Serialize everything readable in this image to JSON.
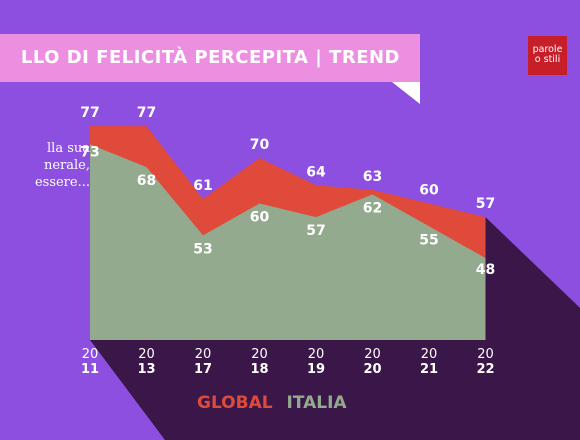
{
  "header": {
    "title": "LLO DI FELICITÀ PERCEPITA | TREND",
    "question_lines": [
      "lla sua",
      "nerale,",
      "essere..."
    ]
  },
  "logo": {
    "line1": "parole",
    "line2": "o stili"
  },
  "colors": {
    "background": "#8c4fdf",
    "banner": "#ec8fe1",
    "global": "#e04a3a",
    "italia": "#94aa8e",
    "shadow": "#3a1748",
    "logo": "#c61f2a"
  },
  "chart_data": {
    "type": "area",
    "categories": [
      [
        "20",
        "11"
      ],
      [
        "20",
        "13"
      ],
      [
        "20",
        "17"
      ],
      [
        "20",
        "18"
      ],
      [
        "20",
        "19"
      ],
      [
        "20",
        "20"
      ],
      [
        "20",
        "21"
      ],
      [
        "20",
        "22"
      ]
    ],
    "series": [
      {
        "name": "GLOBAL",
        "values": [
          77,
          77,
          61,
          70,
          64,
          63,
          60,
          57
        ]
      },
      {
        "name": "ITALIA",
        "values": [
          73,
          68,
          53,
          60,
          57,
          62,
          55,
          48
        ]
      }
    ],
    "legend": "bottom-center",
    "grid": false
  }
}
